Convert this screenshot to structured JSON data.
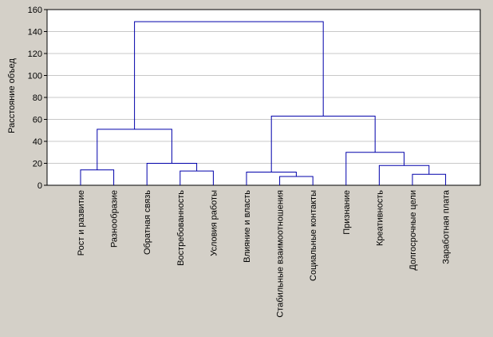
{
  "chart_data": {
    "type": "dendrogram",
    "title": "",
    "xlabel": "",
    "ylabel": "Расстояние объед",
    "ylim": [
      0,
      160
    ],
    "yticks": [
      0,
      20,
      40,
      60,
      80,
      100,
      120,
      140,
      160
    ],
    "grid": true,
    "leaves": [
      "Рост и развитие",
      "Разнообразие",
      "Обратная связь",
      "Востребованность",
      "Условия работы",
      "Влияние и власть",
      "Стабильные взаимоотношения",
      "Социальные контакты",
      "Признание",
      "Креативность",
      "Долгосрочные цели",
      "Заработная плата"
    ],
    "merges": [
      {
        "left": 0,
        "right": 1,
        "height": 14
      },
      {
        "left": 3,
        "right": 4,
        "height": 13
      },
      {
        "left": 2,
        "right": "n1",
        "height": 20
      },
      {
        "left": "n0",
        "right": "n2",
        "height": 51
      },
      {
        "left": 6,
        "right": 7,
        "height": 8
      },
      {
        "left": 5,
        "right": "n4",
        "height": 12
      },
      {
        "left": 10,
        "right": 11,
        "height": 10
      },
      {
        "left": 9,
        "right": "n6",
        "height": 18
      },
      {
        "left": 8,
        "right": "n7",
        "height": 30
      },
      {
        "left": "n5",
        "right": "n8",
        "height": 63
      },
      {
        "left": "n3",
        "right": "n9",
        "height": 149
      }
    ],
    "colors": {
      "background": "#d4d0c8",
      "plot_background": "#ffffff",
      "line": "#0000aa",
      "grid": "#c8c8c8",
      "axis": "#000000"
    }
  }
}
